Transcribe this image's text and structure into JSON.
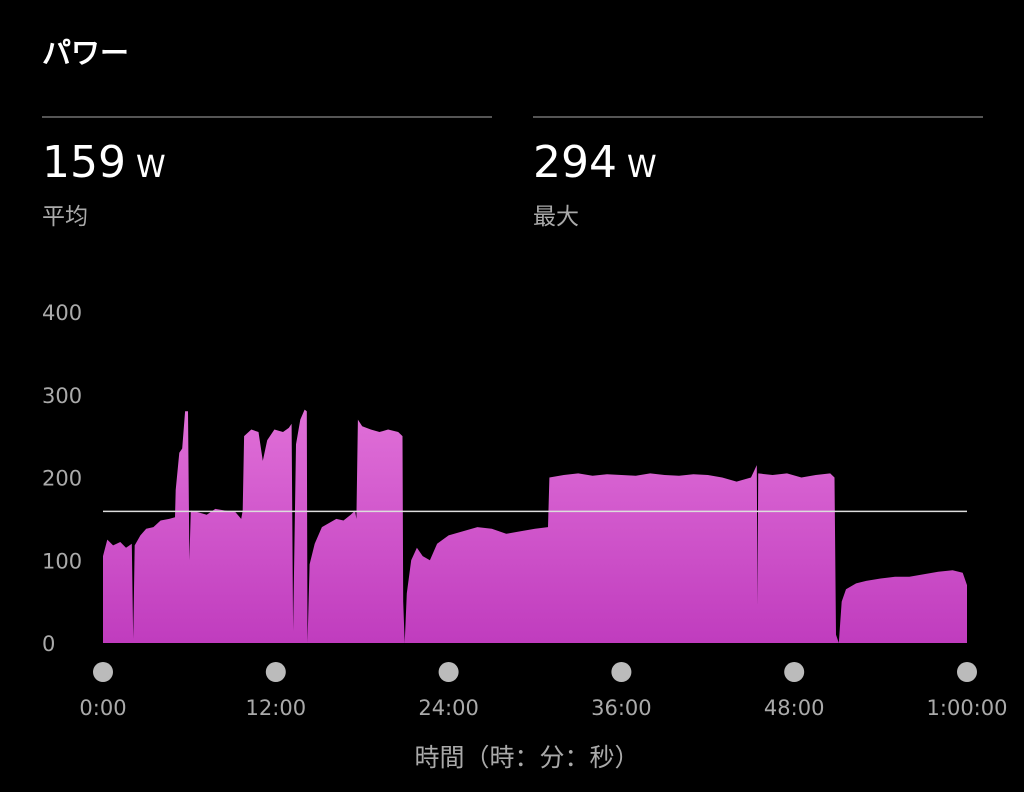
{
  "title": "パワー",
  "stats": [
    {
      "value": "159",
      "unit": "W",
      "label": "平均"
    },
    {
      "value": "294",
      "unit": "W",
      "label": "最大"
    }
  ],
  "chart_data": {
    "type": "area",
    "xlabel": "時間（時：分：秒）",
    "ylabel": "",
    "xlim": [
      0,
      60
    ],
    "ylim": [
      0,
      400
    ],
    "x_unit": "minutes",
    "y_ticks": [
      0,
      100,
      200,
      300,
      400
    ],
    "x_ticks": [
      0,
      12,
      24,
      36,
      48,
      60
    ],
    "x_tick_labels": [
      "0:00",
      "12:00",
      "24:00",
      "36:00",
      "48:00",
      "1:00:00"
    ],
    "average_line": 159,
    "fill_color_top": "#e070d8",
    "fill_color_bottom": "#c03cbe",
    "grid": false,
    "points": [
      [
        0,
        105
      ],
      [
        0.3,
        125
      ],
      [
        0.7,
        118
      ],
      [
        1.2,
        122
      ],
      [
        1.6,
        115
      ],
      [
        2.0,
        120
      ],
      [
        2.1,
        5
      ],
      [
        2.2,
        118
      ],
      [
        2.6,
        130
      ],
      [
        3.0,
        138
      ],
      [
        3.5,
        140
      ],
      [
        4.0,
        148
      ],
      [
        4.6,
        150
      ],
      [
        5.0,
        152
      ],
      [
        5.05,
        185
      ],
      [
        5.3,
        230
      ],
      [
        5.5,
        235
      ],
      [
        5.7,
        280
      ],
      [
        5.9,
        280
      ],
      [
        6.0,
        100
      ],
      [
        6.1,
        160
      ],
      [
        6.6,
        158
      ],
      [
        7.2,
        155
      ],
      [
        7.8,
        162
      ],
      [
        8.5,
        160
      ],
      [
        9.2,
        158
      ],
      [
        9.6,
        150
      ],
      [
        9.7,
        160
      ],
      [
        9.8,
        250
      ],
      [
        10.3,
        258
      ],
      [
        10.8,
        255
      ],
      [
        11.1,
        220
      ],
      [
        11.4,
        245
      ],
      [
        11.9,
        258
      ],
      [
        12.5,
        255
      ],
      [
        12.9,
        260
      ],
      [
        13.1,
        265
      ],
      [
        13.2,
        15
      ],
      [
        13.4,
        240
      ],
      [
        13.7,
        270
      ],
      [
        14.0,
        282
      ],
      [
        14.15,
        280
      ],
      [
        14.2,
        0
      ],
      [
        14.35,
        95
      ],
      [
        14.7,
        120
      ],
      [
        15.2,
        140
      ],
      [
        15.7,
        145
      ],
      [
        16.2,
        150
      ],
      [
        16.7,
        148
      ],
      [
        17.2,
        155
      ],
      [
        17.5,
        160
      ],
      [
        17.6,
        150
      ],
      [
        17.7,
        270
      ],
      [
        18.0,
        262
      ],
      [
        18.6,
        258
      ],
      [
        19.2,
        255
      ],
      [
        19.8,
        258
      ],
      [
        20.5,
        255
      ],
      [
        20.8,
        250
      ],
      [
        20.85,
        50
      ],
      [
        20.95,
        0
      ],
      [
        21.1,
        60
      ],
      [
        21.4,
        100
      ],
      [
        21.8,
        115
      ],
      [
        22.2,
        105
      ],
      [
        22.7,
        100
      ],
      [
        23.2,
        120
      ],
      [
        24,
        130
      ],
      [
        25,
        135
      ],
      [
        26,
        140
      ],
      [
        27,
        138
      ],
      [
        28,
        132
      ],
      [
        29,
        135
      ],
      [
        30,
        138
      ],
      [
        30.9,
        140
      ],
      [
        31.0,
        200
      ],
      [
        32,
        203
      ],
      [
        33,
        205
      ],
      [
        34,
        202
      ],
      [
        35,
        204
      ],
      [
        36,
        203
      ],
      [
        37,
        202
      ],
      [
        38,
        205
      ],
      [
        39,
        203
      ],
      [
        40,
        202
      ],
      [
        41,
        204
      ],
      [
        42,
        203
      ],
      [
        43,
        200
      ],
      [
        44,
        195
      ],
      [
        45,
        200
      ],
      [
        45.4,
        215
      ],
      [
        45.45,
        45
      ],
      [
        45.5,
        205
      ],
      [
        46.5,
        203
      ],
      [
        47.5,
        205
      ],
      [
        48.5,
        200
      ],
      [
        49.5,
        203
      ],
      [
        50.5,
        205
      ],
      [
        50.8,
        200
      ],
      [
        50.9,
        10
      ],
      [
        51.1,
        0
      ],
      [
        51.3,
        50
      ],
      [
        51.6,
        65
      ],
      [
        52.3,
        72
      ],
      [
        53,
        75
      ],
      [
        54,
        78
      ],
      [
        55,
        80
      ],
      [
        56,
        80
      ],
      [
        57,
        83
      ],
      [
        58,
        86
      ],
      [
        59,
        88
      ],
      [
        59.7,
        85
      ],
      [
        60,
        70
      ]
    ]
  }
}
